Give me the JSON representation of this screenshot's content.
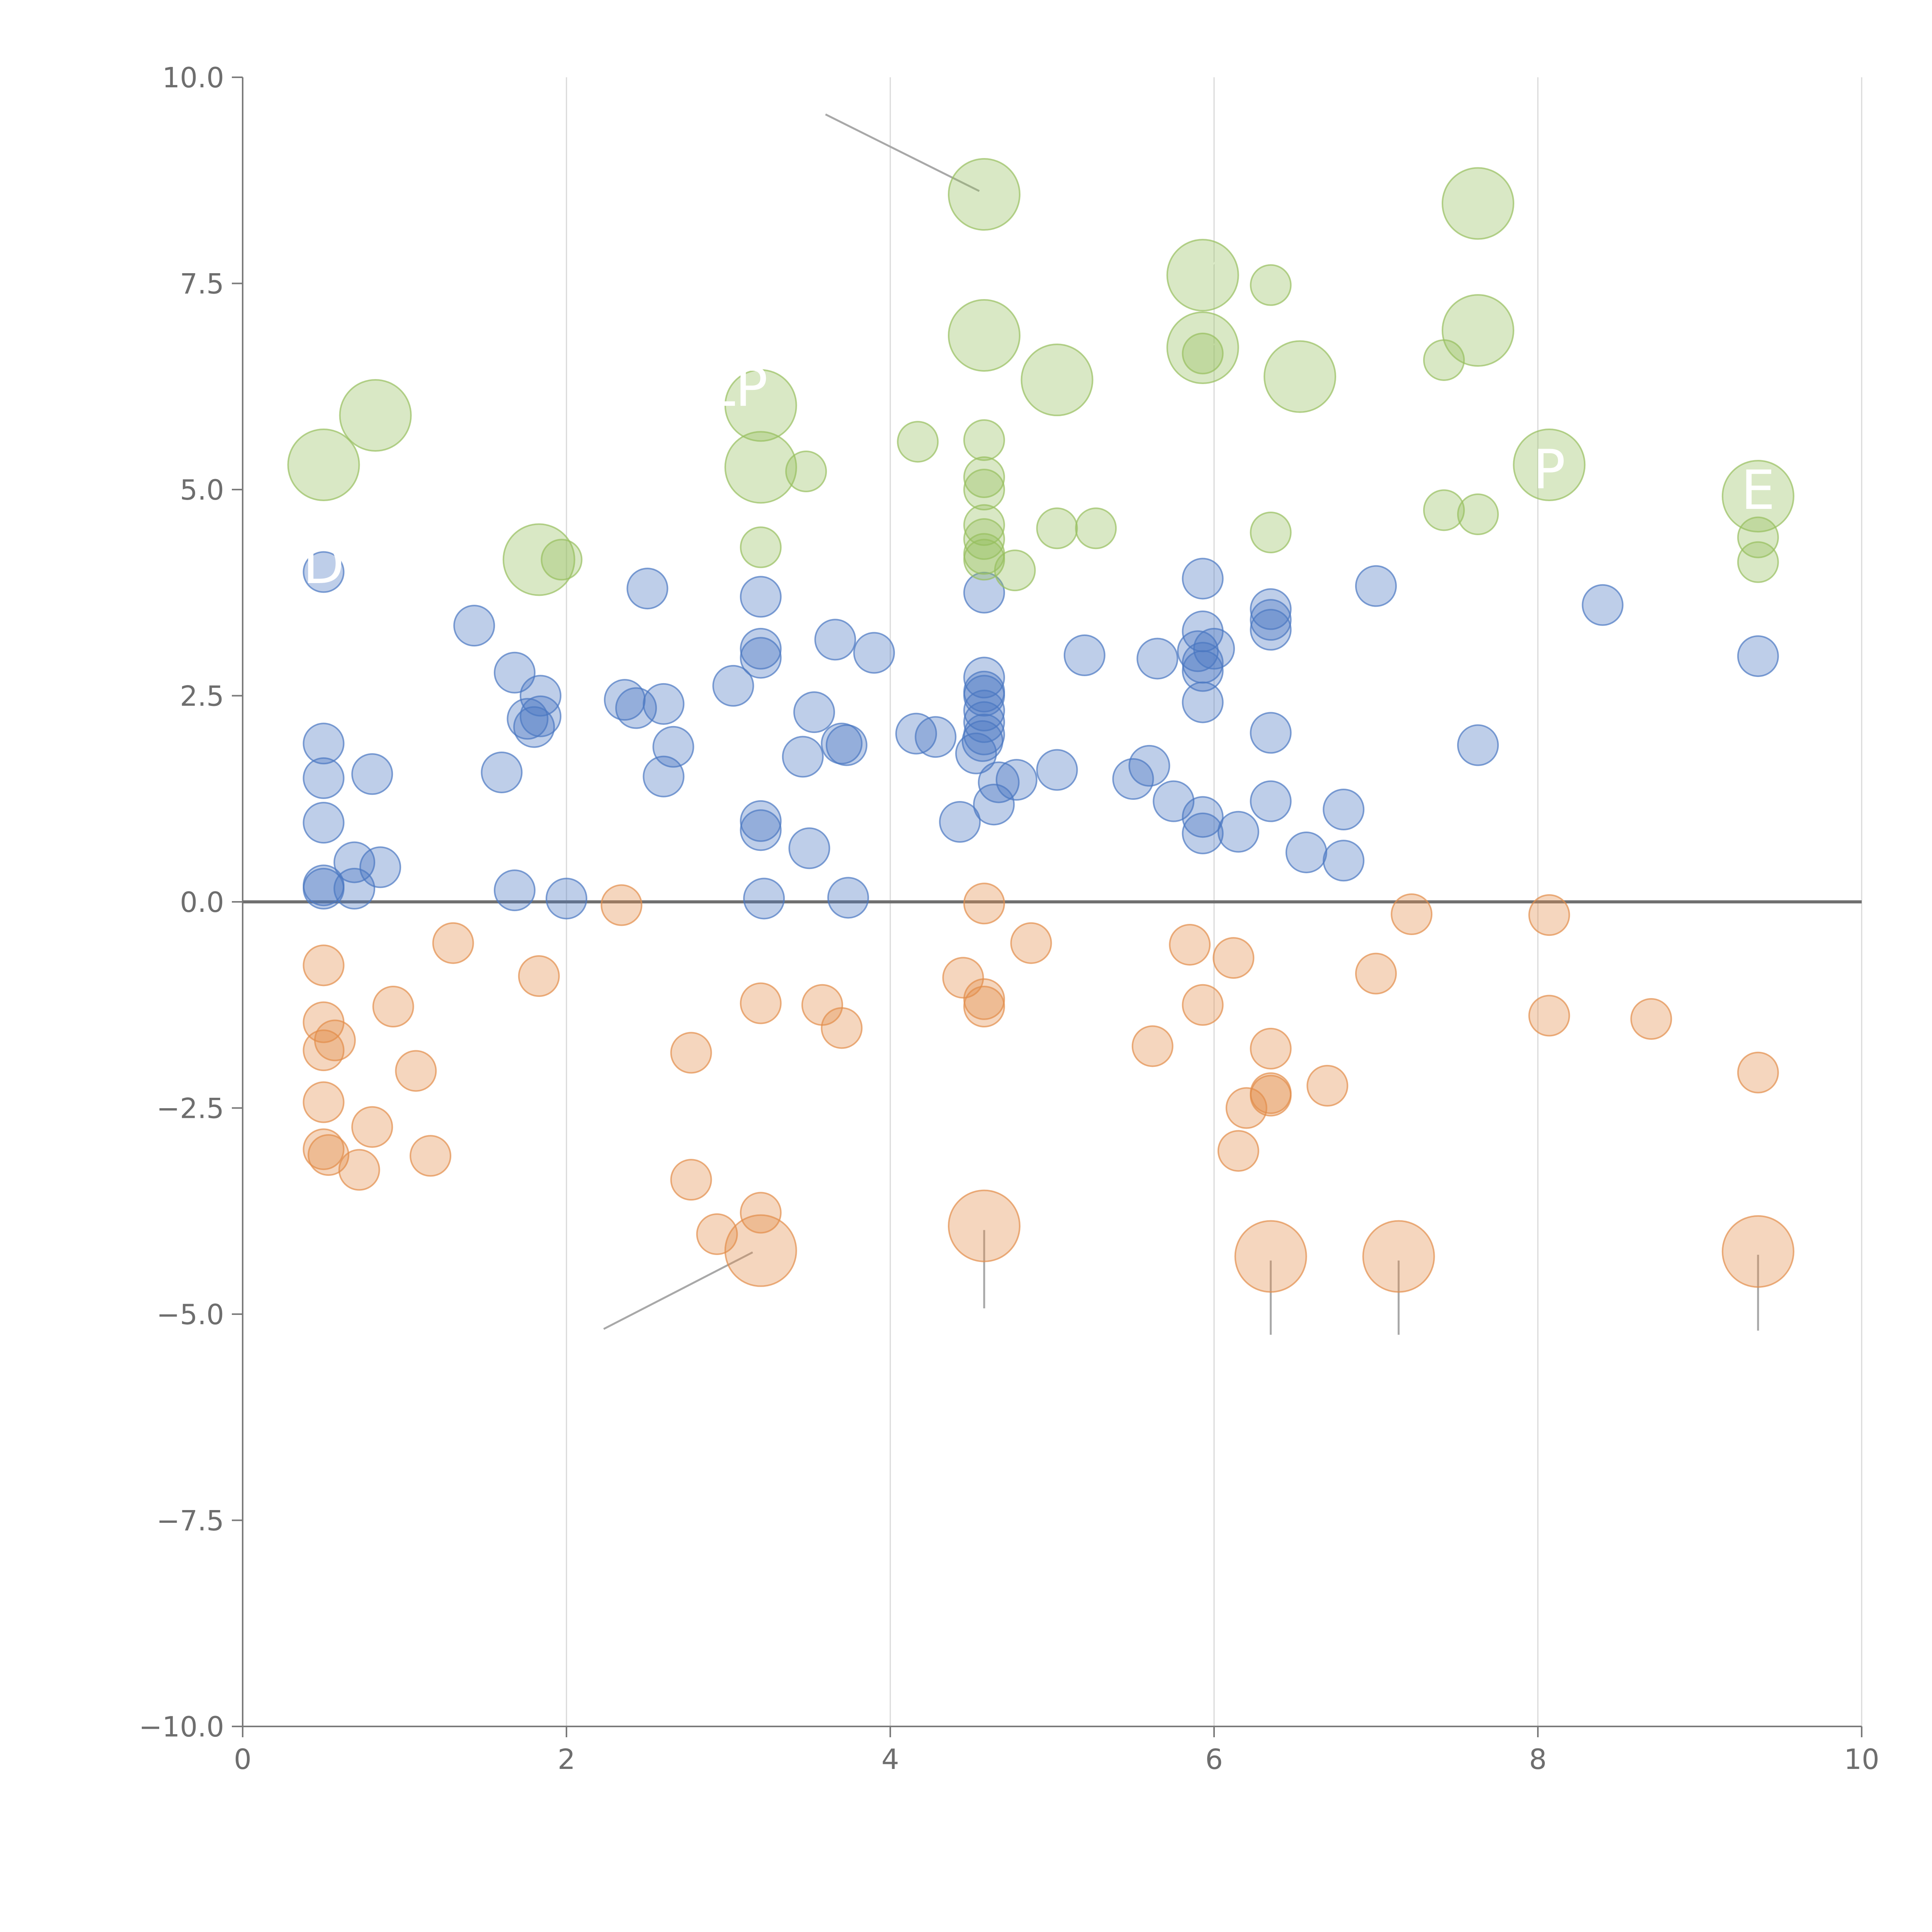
{
  "chart_data": {
    "type": "scatter",
    "title": "",
    "xlabel": "",
    "ylabel": "",
    "xlim": [
      0,
      10
    ],
    "ylim": [
      -10,
      10
    ],
    "grid": "vertical",
    "zero_line": true,
    "x_ticks": [
      0,
      2,
      4,
      6,
      8,
      10
    ],
    "x_tick_labels": [
      "0",
      "2",
      "4",
      "6",
      "8",
      "10"
    ],
    "y_ticks": [
      -10,
      -7.5,
      -5,
      -2.5,
      0,
      2.5,
      5,
      7.5,
      10
    ],
    "y_tick_labels": [
      "−10.0",
      "−7.5",
      "−5.0",
      "−2.5",
      "0.0",
      "2.5",
      "5.0",
      "7.5",
      "10.0"
    ],
    "series": [
      {
        "name": "blue",
        "color": "#4a78c2",
        "points": [
          [
            0.5,
            4.0,
            1
          ],
          [
            0.5,
            1.92,
            1
          ],
          [
            0.5,
            1.5,
            1
          ],
          [
            0.5,
            0.96,
            1
          ],
          [
            0.5,
            0.2,
            1
          ],
          [
            0.5,
            0.16,
            1
          ],
          [
            0.69,
            0.48,
            1
          ],
          [
            0.69,
            0.16,
            1
          ],
          [
            0.8,
            1.55,
            1
          ],
          [
            0.85,
            0.42,
            1
          ],
          [
            1.43,
            3.35,
            1
          ],
          [
            1.6,
            1.57,
            1
          ],
          [
            1.68,
            2.78,
            1
          ],
          [
            1.68,
            0.14,
            1
          ],
          [
            1.76,
            2.22,
            1
          ],
          [
            1.8,
            2.12,
            1
          ],
          [
            1.84,
            2.25,
            1
          ],
          [
            1.84,
            2.5,
            1
          ],
          [
            2.0,
            0.04,
            1
          ],
          [
            2.36,
            2.45,
            1
          ],
          [
            2.43,
            2.35,
            1
          ],
          [
            2.5,
            3.8,
            1
          ],
          [
            2.6,
            2.4,
            1
          ],
          [
            2.6,
            1.52,
            1
          ],
          [
            2.66,
            1.88,
            1
          ],
          [
            3.03,
            2.62,
            1
          ],
          [
            3.2,
            3.7,
            1
          ],
          [
            3.2,
            3.07,
            1
          ],
          [
            3.2,
            2.96,
            1
          ],
          [
            3.2,
            0.98,
            1
          ],
          [
            3.2,
            0.87,
            1
          ],
          [
            3.22,
            0.04,
            1
          ],
          [
            3.46,
            1.76,
            1
          ],
          [
            3.5,
            0.65,
            1
          ],
          [
            3.53,
            2.3,
            1
          ],
          [
            3.66,
            3.18,
            1
          ],
          [
            3.7,
            1.92,
            1
          ],
          [
            3.73,
            1.9,
            1
          ],
          [
            3.74,
            0.05,
            1
          ],
          [
            3.9,
            3.02,
            1
          ],
          [
            4.16,
            2.04,
            1
          ],
          [
            4.28,
            2.0,
            1
          ],
          [
            4.43,
            0.97,
            1
          ],
          [
            4.53,
            1.8,
            1
          ],
          [
            4.57,
            1.95,
            1
          ],
          [
            4.58,
            3.75,
            1
          ],
          [
            4.58,
            2.72,
            1
          ],
          [
            4.58,
            2.55,
            1
          ],
          [
            4.58,
            2.5,
            1
          ],
          [
            4.58,
            2.32,
            1
          ],
          [
            4.58,
            2.18,
            1
          ],
          [
            4.58,
            2.03,
            1
          ],
          [
            4.64,
            1.18,
            1
          ],
          [
            4.67,
            1.45,
            1
          ],
          [
            4.78,
            1.48,
            1
          ],
          [
            5.03,
            1.6,
            1
          ],
          [
            5.2,
            2.99,
            1
          ],
          [
            5.5,
            1.49,
            1
          ],
          [
            5.6,
            1.65,
            1
          ],
          [
            5.65,
            2.95,
            1
          ],
          [
            5.75,
            1.22,
            1
          ],
          [
            5.9,
            3.04,
            1
          ],
          [
            5.93,
            3.92,
            1
          ],
          [
            5.93,
            3.28,
            1
          ],
          [
            5.93,
            2.9,
            1
          ],
          [
            5.93,
            2.8,
            1
          ],
          [
            5.93,
            2.42,
            1
          ],
          [
            5.93,
            1.03,
            1
          ],
          [
            5.93,
            0.83,
            1
          ],
          [
            6.0,
            3.07,
            1
          ],
          [
            6.15,
            0.85,
            1
          ],
          [
            6.35,
            3.55,
            1
          ],
          [
            6.35,
            3.42,
            1
          ],
          [
            6.35,
            3.3,
            1
          ],
          [
            6.35,
            2.05,
            1
          ],
          [
            6.35,
            1.22,
            1
          ],
          [
            6.57,
            0.6,
            1
          ],
          [
            6.8,
            1.12,
            1
          ],
          [
            6.8,
            0.5,
            1
          ],
          [
            7.0,
            3.83,
            1
          ],
          [
            7.63,
            1.9,
            1
          ],
          [
            8.4,
            3.6,
            1
          ],
          [
            9.36,
            2.98,
            1
          ]
        ]
      },
      {
        "name": "orange",
        "color": "#e38d4a",
        "points": [
          [
            0.5,
            -0.77,
            1
          ],
          [
            0.5,
            -1.46,
            1
          ],
          [
            0.5,
            -1.8,
            1
          ],
          [
            0.5,
            -2.43,
            1
          ],
          [
            0.5,
            -3.0,
            1
          ],
          [
            0.53,
            -3.07,
            1
          ],
          [
            0.57,
            -1.68,
            1
          ],
          [
            0.72,
            -3.25,
            1
          ],
          [
            0.8,
            -2.73,
            1
          ],
          [
            0.93,
            -1.27,
            1
          ],
          [
            1.07,
            -2.05,
            1
          ],
          [
            1.16,
            -3.08,
            1
          ],
          [
            1.3,
            -0.5,
            1
          ],
          [
            1.83,
            -0.9,
            1
          ],
          [
            2.34,
            -0.04,
            1
          ],
          [
            2.77,
            -1.83,
            1
          ],
          [
            2.77,
            -3.37,
            1
          ],
          [
            2.93,
            -4.03,
            1
          ],
          [
            3.2,
            -1.23,
            1
          ],
          [
            3.2,
            -3.77,
            1
          ],
          [
            3.2,
            -4.23,
            2
          ],
          [
            3.58,
            -1.25,
            1
          ],
          [
            3.7,
            -1.53,
            1
          ],
          [
            4.45,
            -0.92,
            1
          ],
          [
            4.58,
            -0.02,
            1
          ],
          [
            4.58,
            -1.18,
            1
          ],
          [
            4.58,
            -1.27,
            1
          ],
          [
            4.58,
            -3.93,
            2
          ],
          [
            4.87,
            -0.5,
            1
          ],
          [
            5.62,
            -1.75,
            1
          ],
          [
            5.85,
            -0.52,
            1
          ],
          [
            5.93,
            -1.25,
            1
          ],
          [
            6.12,
            -0.68,
            1
          ],
          [
            6.15,
            -3.02,
            1
          ],
          [
            6.2,
            -2.5,
            1
          ],
          [
            6.35,
            -1.78,
            1
          ],
          [
            6.35,
            -2.35,
            1
          ],
          [
            6.35,
            -2.32,
            1
          ],
          [
            6.35,
            -4.3,
            2
          ],
          [
            6.7,
            -2.23,
            1
          ],
          [
            7.0,
            -0.87,
            1
          ],
          [
            7.14,
            -4.3,
            2
          ],
          [
            7.22,
            -0.15,
            1
          ],
          [
            8.07,
            -0.16,
            1
          ],
          [
            8.07,
            -1.38,
            1
          ],
          [
            8.7,
            -1.42,
            1
          ],
          [
            9.36,
            -2.07,
            1
          ],
          [
            9.36,
            -4.24,
            2
          ]
        ]
      },
      {
        "name": "green",
        "color": "#97bf5e",
        "points": [
          [
            0.5,
            5.3,
            2
          ],
          [
            0.82,
            5.9,
            2
          ],
          [
            1.83,
            4.15,
            2
          ],
          [
            1.97,
            4.15,
            1
          ],
          [
            3.2,
            6.02,
            2
          ],
          [
            3.2,
            5.27,
            2
          ],
          [
            3.2,
            4.3,
            1
          ],
          [
            3.48,
            5.22,
            1
          ],
          [
            4.17,
            5.58,
            1
          ],
          [
            4.58,
            8.58,
            2
          ],
          [
            4.58,
            6.87,
            2
          ],
          [
            4.58,
            5.6,
            1
          ],
          [
            4.58,
            5.15,
            1
          ],
          [
            4.58,
            5.0,
            1
          ],
          [
            4.58,
            4.57,
            1
          ],
          [
            4.58,
            4.4,
            1
          ],
          [
            4.58,
            4.22,
            1
          ],
          [
            4.58,
            4.15,
            1
          ],
          [
            4.77,
            4.02,
            1
          ],
          [
            5.03,
            6.33,
            2
          ],
          [
            5.03,
            4.53,
            1
          ],
          [
            5.27,
            4.53,
            1
          ],
          [
            5.93,
            7.6,
            2
          ],
          [
            5.93,
            6.72,
            2
          ],
          [
            5.93,
            6.65,
            1
          ],
          [
            6.35,
            7.48,
            1
          ],
          [
            6.35,
            4.48,
            1
          ],
          [
            6.53,
            6.37,
            2
          ],
          [
            7.42,
            6.57,
            1
          ],
          [
            7.42,
            4.75,
            1
          ],
          [
            7.63,
            8.47,
            2
          ],
          [
            7.63,
            6.93,
            2
          ],
          [
            7.63,
            4.7,
            1
          ],
          [
            8.07,
            5.3,
            2
          ],
          [
            9.36,
            4.92,
            2
          ],
          [
            9.36,
            4.42,
            1
          ],
          [
            9.36,
            4.12,
            1
          ]
        ]
      }
    ],
    "annotations": [
      {
        "text": "D",
        "x": 0.5,
        "y": 4.1
      },
      {
        "text": "LP",
        "x": 3.05,
        "y": 6.25
      },
      {
        "text": "P",
        "x": 8.07,
        "y": 5.25
      },
      {
        "text": "E",
        "x": 9.36,
        "y": 5.0
      }
    ],
    "leader_lines": [
      {
        "from": [
          3.6,
          9.55
        ],
        "to": [
          4.55,
          8.62
        ],
        "color": "#a8a8a8"
      },
      {
        "from": [
          2.23,
          -5.18
        ],
        "to": [
          3.15,
          -4.25
        ],
        "color": "#a8a8a8"
      },
      {
        "from": [
          4.58,
          -3.98
        ],
        "to": [
          4.58,
          -4.93
        ],
        "color": "#a8a8a8"
      },
      {
        "from": [
          6.35,
          -4.35
        ],
        "to": [
          6.35,
          -5.25
        ],
        "color": "#a8a8a8"
      },
      {
        "from": [
          7.14,
          -4.35
        ],
        "to": [
          7.14,
          -5.25
        ],
        "color": "#a8a8a8"
      },
      {
        "from": [
          9.36,
          -4.28
        ],
        "to": [
          9.36,
          -5.2
        ],
        "color": "#a8a8a8"
      },
      {
        "from": [
          0.52,
          5.28
        ],
        "to": [
          0.6,
          4.95
        ],
        "color": "#ffffff"
      },
      {
        "from": [
          0.82,
          5.9
        ],
        "to": [
          0.82,
          5.55
        ],
        "color": "#ffffff"
      },
      {
        "from": [
          1.83,
          4.15
        ],
        "to": [
          1.9,
          3.85
        ],
        "color": "#ffffff"
      },
      {
        "from": [
          3.15,
          6.1
        ],
        "to": [
          2.95,
          6.25
        ],
        "color": "#ffffff"
      },
      {
        "from": [
          3.2,
          5.27
        ],
        "to": [
          3.35,
          5.05
        ],
        "color": "#ffffff"
      },
      {
        "from": [
          4.58,
          6.87
        ],
        "to": [
          4.65,
          7.3
        ],
        "color": "#ffffff"
      },
      {
        "from": [
          5.03,
          6.33
        ],
        "to": [
          5.15,
          6.05
        ],
        "color": "#ffffff"
      },
      {
        "from": [
          5.93,
          7.6
        ],
        "to": [
          6.1,
          7.95
        ],
        "color": "#ffffff"
      },
      {
        "from": [
          5.93,
          6.72
        ],
        "to": [
          6.15,
          6.85
        ],
        "color": "#ffffff"
      },
      {
        "from": [
          6.53,
          6.37
        ],
        "to": [
          6.65,
          6.05
        ],
        "color": "#ffffff"
      },
      {
        "from": [
          7.63,
          8.47
        ],
        "to": [
          7.95,
          8.6
        ],
        "color": "#ffffff"
      },
      {
        "from": [
          7.63,
          6.93
        ],
        "to": [
          7.95,
          6.97
        ],
        "color": "#ffffff"
      },
      {
        "from": [
          9.36,
          4.92
        ],
        "to": [
          9.48,
          5.15
        ],
        "color": "#ffffff"
      }
    ]
  }
}
